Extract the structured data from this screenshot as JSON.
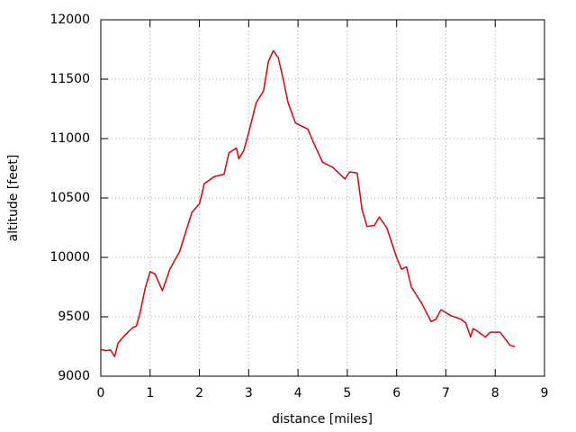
{
  "chart_data": {
    "type": "line",
    "x_label": "distance [miles]",
    "y_label": "altitude [feet]",
    "x": [
      0,
      0.1,
      0.2,
      0.28,
      0.35,
      0.5,
      0.65,
      0.72,
      0.8,
      0.9,
      1.0,
      1.1,
      1.25,
      1.4,
      1.6,
      1.75,
      1.85,
      2.0,
      2.1,
      2.3,
      2.5,
      2.6,
      2.75,
      2.8,
      2.9,
      3.0,
      3.15,
      3.3,
      3.4,
      3.5,
      3.6,
      3.7,
      3.8,
      3.95,
      4.2,
      4.3,
      4.5,
      4.7,
      4.85,
      4.95,
      5.05,
      5.2,
      5.3,
      5.4,
      5.55,
      5.65,
      5.8,
      6.0,
      6.1,
      6.2,
      6.3,
      6.5,
      6.7,
      6.8,
      6.9,
      7.1,
      7.3,
      7.4,
      7.5,
      7.55,
      7.6,
      7.8,
      7.9,
      8.1,
      8.3,
      8.4
    ],
    "series": [
      {
        "color": "#e00000",
        "values": [
          9225,
          9215,
          9220,
          9165,
          9280,
          9350,
          9410,
          9420,
          9540,
          9740,
          9880,
          9860,
          9720,
          9900,
          10050,
          10250,
          10380,
          10450,
          10620,
          10680,
          10700,
          10880,
          10920,
          10830,
          10900,
          11050,
          11300,
          11400,
          11650,
          11740,
          11680,
          11500,
          11300,
          11130,
          11080,
          10980,
          10800,
          10760,
          10700,
          10660,
          10720,
          10710,
          10400,
          10260,
          10270,
          10340,
          10250,
          10000,
          9900,
          9920,
          9750,
          9620,
          9460,
          9480,
          9560,
          9510,
          9480,
          9450,
          9330,
          9400,
          9390,
          9330,
          9370,
          9370,
          9260,
          9250
        ]
      }
    ],
    "xlim": [
      0,
      9
    ],
    "xticks": [
      0,
      1,
      2,
      3,
      4,
      5,
      6,
      7,
      8,
      9
    ],
    "ylim": [
      9000,
      12000
    ],
    "yticks": [
      9000,
      9500,
      10000,
      10500,
      11000,
      11500,
      12000
    ],
    "grid": true
  }
}
